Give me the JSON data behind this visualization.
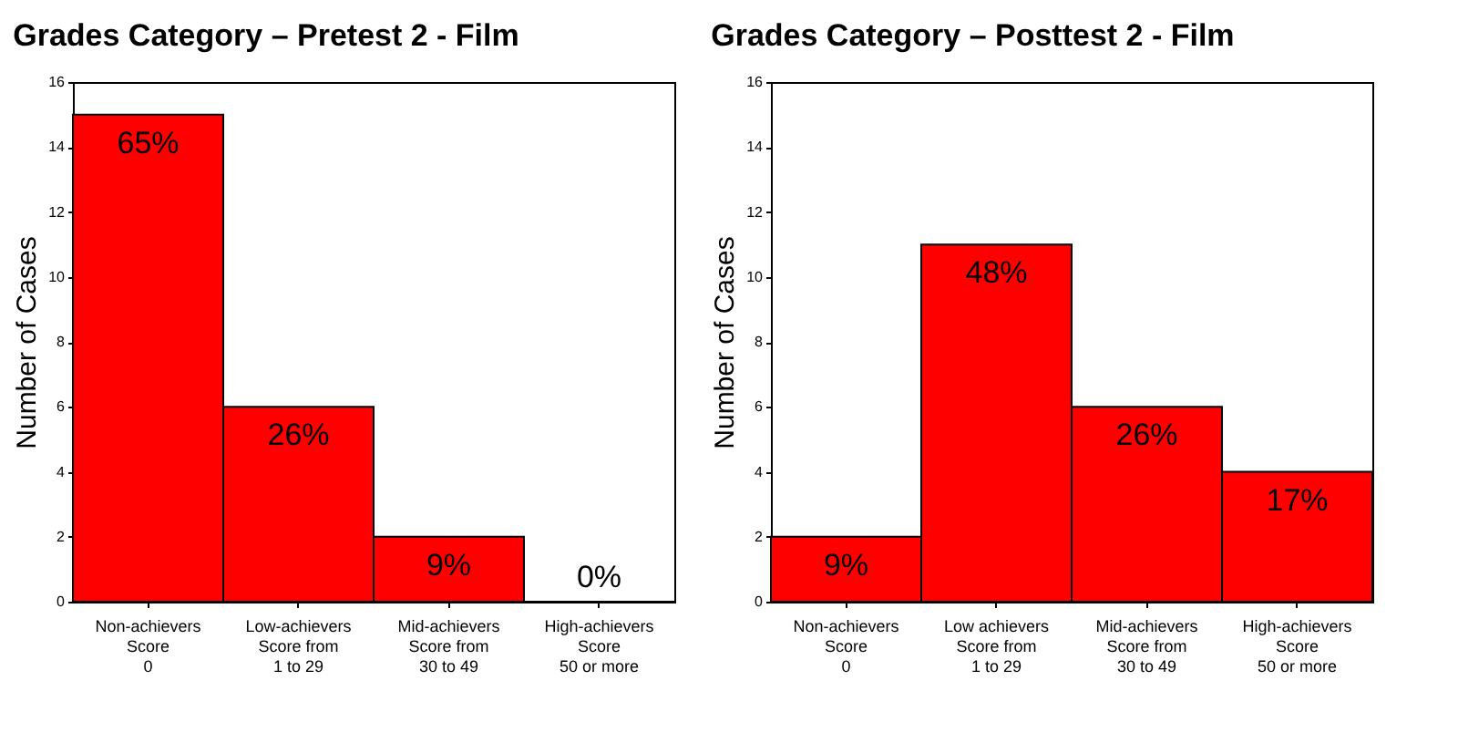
{
  "chart_data": [
    {
      "type": "bar",
      "title": "Grades Category – Pretest 2 - Film",
      "ylabel": "Number of Cases",
      "categories": [
        "Non-achievers\nScore\n0",
        "Low-achievers\nScore from\n1 to 29",
        "Mid-achievers\nScore from\n30 to 49",
        "High-achievers\nScore\n50 or more"
      ],
      "values": [
        15,
        6,
        2,
        0
      ],
      "color": "#ff0000",
      "ylim": [
        0,
        16
      ],
      "yticks": [
        0,
        2,
        4,
        6,
        8,
        10,
        12,
        14,
        16
      ],
      "annotations": [
        {
          "text": "65%",
          "x": "Non-achievers\nScore\n0",
          "y": 15
        },
        {
          "text": "26%",
          "x": "Low-achievers\nScore from\n1 to 29",
          "y": 6
        },
        {
          "text": "9%",
          "x": "Mid-achievers\nScore from\n30 to 49",
          "y": 2
        },
        {
          "text": "0%",
          "x": "High-achievers\nScore\n50 or more",
          "y": 0
        }
      ]
    },
    {
      "type": "bar",
      "title": "Grades Category – Posttest 2 - Film",
      "ylabel": "Number of Cases",
      "categories": [
        "Non-achievers\nScore\n0",
        "Low achievers\nScore from\n1 to 29",
        "Mid-achievers\nScore from\n30 to 49",
        "High-achievers\nScore\n50 or more"
      ],
      "values": [
        2,
        11,
        6,
        4
      ],
      "color": "#ff0000",
      "ylim": [
        0,
        16
      ],
      "yticks": [
        0,
        2,
        4,
        6,
        8,
        10,
        12,
        14,
        16
      ],
      "annotations": [
        {
          "text": "9%",
          "x": "Non-achievers\nScore\n0",
          "y": 2
        },
        {
          "text": "48%",
          "x": "Low achievers\nScore from\n1 to 29",
          "y": 11
        },
        {
          "text": "26%",
          "x": "Mid-achievers\nScore from\n30 to 49",
          "y": 6
        },
        {
          "text": "17%",
          "x": "High-achievers\nScore\n50 or more",
          "y": 4
        }
      ]
    }
  ]
}
